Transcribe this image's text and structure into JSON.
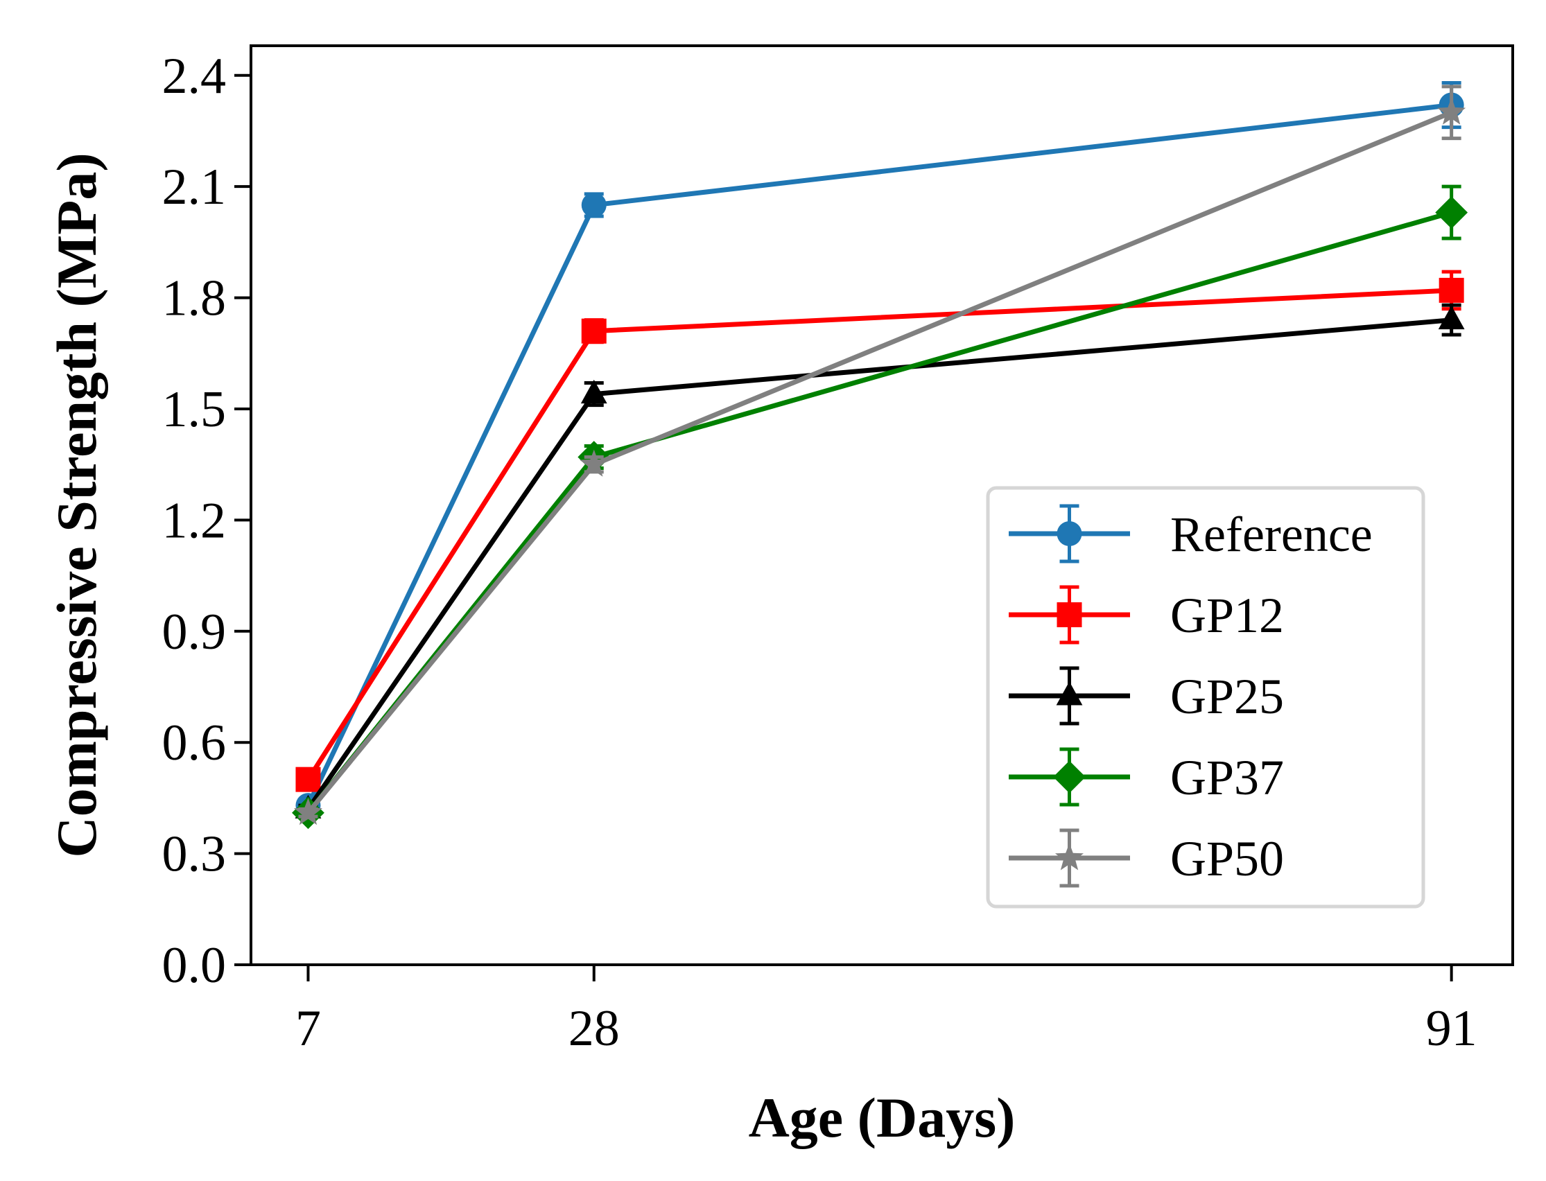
{
  "chart_data": {
    "type": "line",
    "title": "",
    "xlabel": "Age (Days)",
    "ylabel": "Compressive Strength (MPa)",
    "x": [
      7,
      28,
      91
    ],
    "xtick_labels": [
      "7",
      "28",
      "91"
    ],
    "xlim": [
      2.8,
      95.5
    ],
    "ylim": [
      0.0,
      2.48
    ],
    "yticks": [
      0.0,
      0.3,
      0.6,
      0.9,
      1.2,
      1.5,
      1.8,
      2.1,
      2.4
    ],
    "ytick_labels": [
      "0.0",
      "0.3",
      "0.6",
      "0.9",
      "1.2",
      "1.5",
      "1.8",
      "2.1",
      "2.4"
    ],
    "grid": false,
    "legend_position": "lower-right",
    "series": [
      {
        "name": "Reference",
        "color": "#1f77b4",
        "marker": "circle",
        "values": [
          0.43,
          2.05,
          2.32
        ],
        "errors": [
          0.01,
          0.03,
          0.06
        ]
      },
      {
        "name": "GP12",
        "color": "#ff0000",
        "marker": "square",
        "values": [
          0.5,
          1.71,
          1.82
        ],
        "errors": [
          0.01,
          0.03,
          0.05
        ]
      },
      {
        "name": "GP25",
        "color": "#000000",
        "marker": "triangle",
        "values": [
          0.42,
          1.54,
          1.74
        ],
        "errors": [
          0.01,
          0.03,
          0.04
        ]
      },
      {
        "name": "GP37",
        "color": "#008000",
        "marker": "diamond",
        "values": [
          0.41,
          1.37,
          2.03
        ],
        "errors": [
          0.01,
          0.03,
          0.07
        ]
      },
      {
        "name": "GP50",
        "color": "#808080",
        "marker": "star",
        "values": [
          0.41,
          1.35,
          2.3
        ],
        "errors": [
          0.01,
          0.02,
          0.07
        ]
      }
    ]
  }
}
